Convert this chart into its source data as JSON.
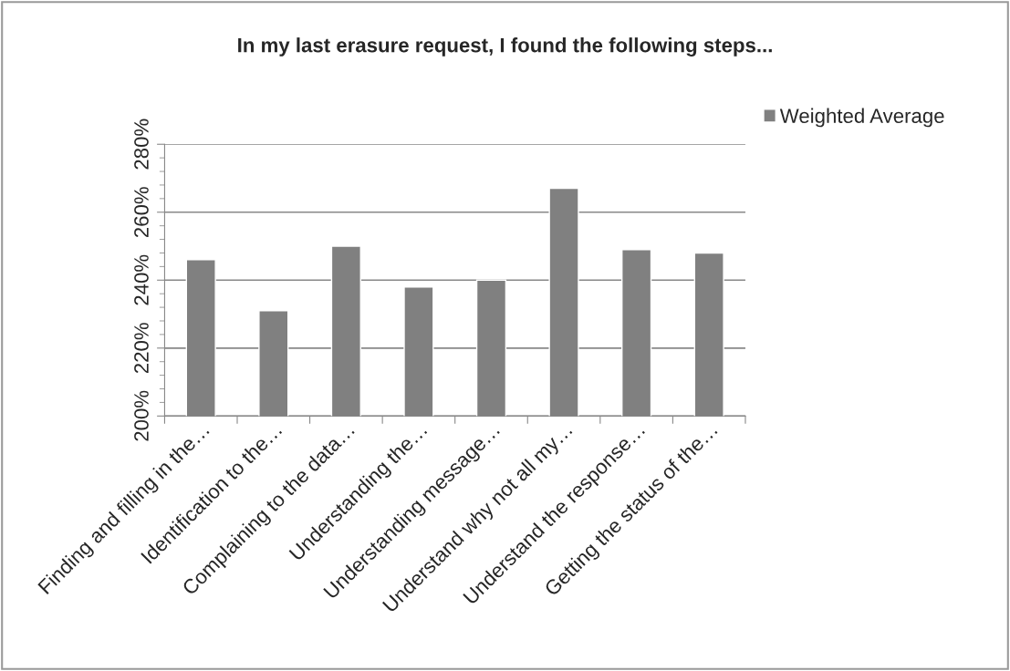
{
  "chart_data": {
    "type": "bar",
    "title": "In my last erasure request, I found the following steps...",
    "categories": [
      "Finding and filling in the…",
      "Identification to the…",
      "Complaining to the data…",
      "Understanding the…",
      "Understanding message…",
      "Understand why not all my…",
      "Understand the response…",
      "Getting the status of the…"
    ],
    "series": [
      {
        "name": "Weighted Average",
        "color": "#808080",
        "values": [
          246,
          231,
          250,
          238,
          240,
          267,
          249,
          248
        ]
      }
    ],
    "ylim": [
      200,
      280
    ],
    "yticks": [
      {
        "value": 200,
        "label": "200%"
      },
      {
        "value": 204,
        "label": null
      },
      {
        "value": 208,
        "label": null
      },
      {
        "value": 212,
        "label": null
      },
      {
        "value": 216,
        "label": null
      },
      {
        "value": 220,
        "label": "220%"
      },
      {
        "value": 224,
        "label": null
      },
      {
        "value": 228,
        "label": null
      },
      {
        "value": 232,
        "label": null
      },
      {
        "value": 236,
        "label": null
      },
      {
        "value": 240,
        "label": "240%"
      },
      {
        "value": 244,
        "label": null
      },
      {
        "value": 248,
        "label": null
      },
      {
        "value": 252,
        "label": null
      },
      {
        "value": 256,
        "label": null
      },
      {
        "value": 260,
        "label": "260%"
      },
      {
        "value": 264,
        "label": null
      },
      {
        "value": 268,
        "label": null
      },
      {
        "value": 272,
        "label": null
      },
      {
        "value": 276,
        "label": null
      },
      {
        "value": 280,
        "label": "280%"
      }
    ],
    "grid": "y",
    "legend": "right"
  }
}
